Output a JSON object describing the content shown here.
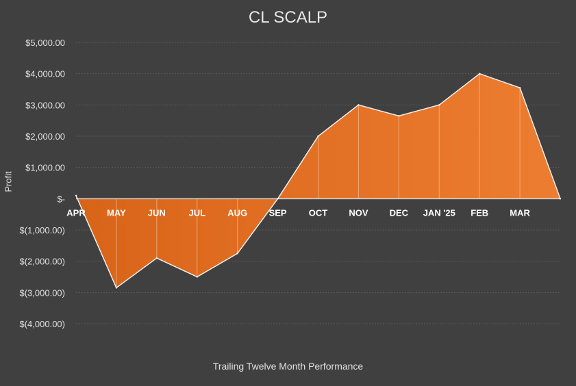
{
  "chart_data": {
    "type": "area",
    "title": "CL SCALP",
    "xlabel": "Trailing Twelve Month Performance",
    "ylabel": "Profit",
    "categories": [
      "APR",
      "MAY",
      "JUN",
      "JUL",
      "AUG",
      "SEP",
      "OCT",
      "NOV",
      "DEC",
      "JAN '25",
      "FEB",
      "MAR",
      ""
    ],
    "values": [
      100,
      -2850,
      -1900,
      -2500,
      -1750,
      0,
      2000,
      3000,
      2650,
      3000,
      4000,
      3550,
      0
    ],
    "ylim": [
      -4000,
      5000
    ],
    "yticks": [
      5000,
      4000,
      3000,
      2000,
      1000,
      0,
      -1000,
      -2000,
      -3000,
      -4000
    ],
    "ytick_labels": [
      "$5,000.00",
      "$4,000.00",
      "$3,000.00",
      "$2,000.00",
      "$1,000.00",
      "$-",
      "$(1,000.00)",
      "$(2,000.00)",
      "$(3,000.00)",
      "$(4,000.00)"
    ],
    "grid": true,
    "legend": "none",
    "colors": {
      "area_fill": "#ED7D31",
      "area_fill_dark": "#D86418",
      "outline": "#F2F2F2",
      "gridline": "#5A5A5A",
      "background": "#404040"
    }
  }
}
